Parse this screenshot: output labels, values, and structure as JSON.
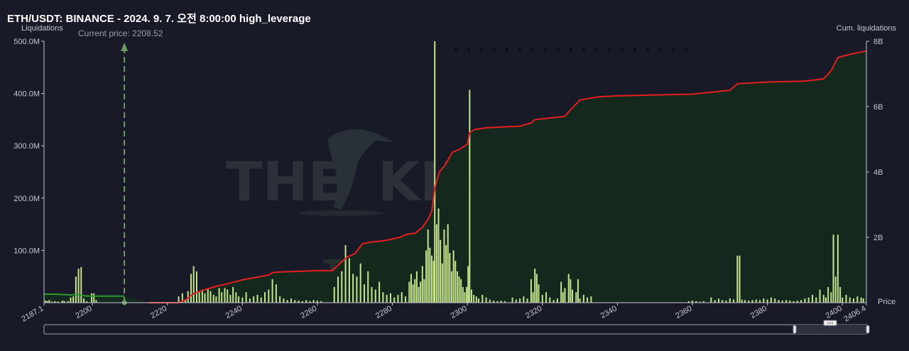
{
  "chart_data": {
    "type": "bar",
    "title": "ETH/USDT: BINANCE - 2024. 9. 7. 오전 8:00:00 high_leverage",
    "y_left_label": "Liquidations",
    "y_right_label": "Cum. liquidations",
    "x_label": "Price",
    "x_range": [
      2187.1,
      2406.4
    ],
    "x_ticks": [
      "2187.1",
      "2200",
      "2220",
      "2240",
      "2260",
      "2280",
      "2300",
      "2320",
      "2340",
      "2360",
      "2380",
      "2400",
      "2406.4"
    ],
    "y_left_range": [
      0,
      500
    ],
    "y_left_ticks": [
      "100.0M",
      "200.0M",
      "300.0M",
      "400.0M",
      "500.0M"
    ],
    "y_right_range": [
      0,
      8
    ],
    "y_right_ticks": [
      "2B",
      "4B",
      "6B",
      "8B"
    ],
    "current_price_label": "Current price: 2208.52",
    "current_price": 2208.52,
    "grid": false,
    "watermark": "THE KINGFISHER.io",
    "colors": {
      "background": "#181a28",
      "bars": "#c6e58e",
      "cumulative_line": "#e61e1e",
      "below_price_line": "#2e9a2e",
      "area_fill": "#15291c",
      "current_price_marker": "#6b9a5f"
    },
    "series": [
      {
        "name": "Liquidations",
        "unit": "M",
        "bars": [
          [
            2187.5,
            4
          ],
          [
            2188.0,
            3
          ],
          [
            2188.5,
            5
          ],
          [
            2189.2,
            2
          ],
          [
            2190.0,
            3
          ],
          [
            2190.8,
            2
          ],
          [
            2192.0,
            4
          ],
          [
            2192.5,
            3
          ],
          [
            2193.5,
            3
          ],
          [
            2194.2,
            10
          ],
          [
            2194.9,
            12
          ],
          [
            2195.6,
            50
          ],
          [
            2196.3,
            65
          ],
          [
            2197.0,
            68
          ],
          [
            2197.7,
            8
          ],
          [
            2198.5,
            3
          ],
          [
            2199.8,
            18
          ],
          [
            2200.4,
            18
          ],
          [
            2201.0,
            5
          ],
          [
            2223.0,
            12
          ],
          [
            2224.0,
            18
          ],
          [
            2224.8,
            5
          ],
          [
            2225.5,
            22
          ],
          [
            2226.3,
            55
          ],
          [
            2227.0,
            70
          ],
          [
            2227.8,
            60
          ],
          [
            2228.5,
            20
          ],
          [
            2229.3,
            25
          ],
          [
            2230.0,
            18
          ],
          [
            2230.8,
            28
          ],
          [
            2231.5,
            22
          ],
          [
            2232.3,
            15
          ],
          [
            2233.0,
            12
          ],
          [
            2233.8,
            28
          ],
          [
            2234.5,
            20
          ],
          [
            2235.3,
            28
          ],
          [
            2236.0,
            25
          ],
          [
            2236.8,
            15
          ],
          [
            2237.5,
            30
          ],
          [
            2238.3,
            20
          ],
          [
            2239.0,
            12
          ],
          [
            2240.0,
            10
          ],
          [
            2241.0,
            20
          ],
          [
            2242.0,
            8
          ],
          [
            2243.0,
            12
          ],
          [
            2244.0,
            15
          ],
          [
            2245.0,
            10
          ],
          [
            2246.0,
            20
          ],
          [
            2247.0,
            25
          ],
          [
            2248.0,
            45
          ],
          [
            2249.0,
            35
          ],
          [
            2250.0,
            12
          ],
          [
            2251.0,
            8
          ],
          [
            2252.0,
            5
          ],
          [
            2253.0,
            8
          ],
          [
            2254.0,
            5
          ],
          [
            2255.0,
            4
          ],
          [
            2256.0,
            3
          ],
          [
            2257.0,
            5
          ],
          [
            2258.0,
            3
          ],
          [
            2259.0,
            5
          ],
          [
            2260.0,
            4
          ],
          [
            2261.0,
            3
          ],
          [
            2264.5,
            30
          ],
          [
            2265.5,
            50
          ],
          [
            2266.5,
            60
          ],
          [
            2267.5,
            110
          ],
          [
            2268.5,
            85
          ],
          [
            2269.5,
            55
          ],
          [
            2270.5,
            50
          ],
          [
            2271.5,
            75
          ],
          [
            2272.5,
            35
          ],
          [
            2273.5,
            60
          ],
          [
            2274.5,
            30
          ],
          [
            2275.5,
            25
          ],
          [
            2276.5,
            40
          ],
          [
            2277.5,
            20
          ],
          [
            2278.5,
            15
          ],
          [
            2279.5,
            18
          ],
          [
            2280.5,
            10
          ],
          [
            2281.5,
            15
          ],
          [
            2282.5,
            20
          ],
          [
            2283.5,
            12
          ],
          [
            2284.5,
            40
          ],
          [
            2285.0,
            55
          ],
          [
            2285.5,
            35
          ],
          [
            2286.0,
            45
          ],
          [
            2286.5,
            60
          ],
          [
            2287.0,
            30
          ],
          [
            2287.5,
            40
          ],
          [
            2288.0,
            70
          ],
          [
            2288.5,
            45
          ],
          [
            2289.0,
            100
          ],
          [
            2289.5,
            140
          ],
          [
            2290.0,
            105
          ],
          [
            2290.5,
            90
          ],
          [
            2291.0,
            80
          ],
          [
            2291.3,
            500
          ],
          [
            2291.8,
            150
          ],
          [
            2292.3,
            180
          ],
          [
            2292.8,
            120
          ],
          [
            2293.3,
            75
          ],
          [
            2293.8,
            140
          ],
          [
            2294.3,
            110
          ],
          [
            2294.8,
            150
          ],
          [
            2295.3,
            95
          ],
          [
            2295.8,
            60
          ],
          [
            2296.3,
            100
          ],
          [
            2296.8,
            80
          ],
          [
            2297.3,
            60
          ],
          [
            2297.8,
            50
          ],
          [
            2298.3,
            45
          ],
          [
            2298.8,
            30
          ],
          [
            2299.3,
            20
          ],
          [
            2299.8,
            30
          ],
          [
            2300.2,
            70
          ],
          [
            2300.6,
            407
          ],
          [
            2301.1,
            25
          ],
          [
            2301.7,
            15
          ],
          [
            2302.4,
            12
          ],
          [
            2303.0,
            8
          ],
          [
            2304.0,
            15
          ],
          [
            2305.0,
            10
          ],
          [
            2306.0,
            6
          ],
          [
            2307.0,
            4
          ],
          [
            2308.0,
            3
          ],
          [
            2309.0,
            4
          ],
          [
            2310.0,
            3
          ],
          [
            2312.0,
            10
          ],
          [
            2313.0,
            6
          ],
          [
            2314.0,
            8
          ],
          [
            2315.0,
            12
          ],
          [
            2316.0,
            8
          ],
          [
            2317.0,
            45
          ],
          [
            2317.5,
            20
          ],
          [
            2318.0,
            65
          ],
          [
            2318.5,
            55
          ],
          [
            2319.0,
            35
          ],
          [
            2320.0,
            15
          ],
          [
            2321.0,
            20
          ],
          [
            2322.0,
            10
          ],
          [
            2323.0,
            5
          ],
          [
            2324.0,
            8
          ],
          [
            2325.0,
            40
          ],
          [
            2325.5,
            20
          ],
          [
            2326.0,
            28
          ],
          [
            2327.0,
            55
          ],
          [
            2327.5,
            45
          ],
          [
            2328.0,
            25
          ],
          [
            2329.0,
            20
          ],
          [
            2329.5,
            45
          ],
          [
            2330.0,
            8
          ],
          [
            2331.0,
            15
          ],
          [
            2332.0,
            10
          ],
          [
            2333.0,
            12
          ],
          [
            2359.0,
            3
          ],
          [
            2360.0,
            4
          ],
          [
            2361.0,
            3
          ],
          [
            2362.0,
            2
          ],
          [
            2363.0,
            3
          ],
          [
            2365.0,
            10
          ],
          [
            2366.0,
            5
          ],
          [
            2367.0,
            8
          ],
          [
            2368.0,
            5
          ],
          [
            2369.0,
            4
          ],
          [
            2370.0,
            8
          ],
          [
            2371.0,
            6
          ],
          [
            2372.0,
            90
          ],
          [
            2372.6,
            90
          ],
          [
            2373.2,
            6
          ],
          [
            2374.0,
            5
          ],
          [
            2375.0,
            4
          ],
          [
            2376.0,
            5
          ],
          [
            2377.0,
            6
          ],
          [
            2378.0,
            5
          ],
          [
            2379.0,
            8
          ],
          [
            2380.0,
            6
          ],
          [
            2381.0,
            10
          ],
          [
            2382.0,
            8
          ],
          [
            2383.0,
            5
          ],
          [
            2384.0,
            4
          ],
          [
            2385.0,
            5
          ],
          [
            2386.0,
            4
          ],
          [
            2387.0,
            3
          ],
          [
            2388.0,
            4
          ],
          [
            2389.0,
            5
          ],
          [
            2390.0,
            8
          ],
          [
            2391.0,
            10
          ],
          [
            2392.0,
            15
          ],
          [
            2393.0,
            10
          ],
          [
            2394.0,
            25
          ],
          [
            2395.0,
            15
          ],
          [
            2395.6,
            10
          ],
          [
            2396.2,
            30
          ],
          [
            2397.0,
            20
          ],
          [
            2397.6,
            130
          ],
          [
            2398.2,
            50
          ],
          [
            2398.8,
            130
          ],
          [
            2399.4,
            30
          ],
          [
            2400.0,
            10
          ],
          [
            2401.0,
            15
          ],
          [
            2402.0,
            10
          ],
          [
            2403.0,
            8
          ],
          [
            2404.0,
            12
          ],
          [
            2405.0,
            10
          ],
          [
            2405.6,
            8
          ]
        ]
      },
      {
        "name": "Cum. liquidations",
        "unit": "B",
        "points": [
          [
            2187.1,
            0.26
          ],
          [
            2190,
            0.26
          ],
          [
            2194,
            0.24
          ],
          [
            2196,
            0.25
          ],
          [
            2198,
            0.21
          ],
          [
            2200,
            0.2
          ],
          [
            2205,
            0.2
          ],
          [
            2208.5,
            0.2
          ],
          [
            2215,
            0.0
          ],
          [
            2223,
            0.0
          ],
          [
            2225,
            0.1
          ],
          [
            2227,
            0.28
          ],
          [
            2230,
            0.4
          ],
          [
            2233,
            0.5
          ],
          [
            2236,
            0.58
          ],
          [
            2240,
            0.7
          ],
          [
            2244,
            0.78
          ],
          [
            2247,
            0.85
          ],
          [
            2248,
            0.92
          ],
          [
            2250,
            0.94
          ],
          [
            2255,
            0.96
          ],
          [
            2260,
            0.98
          ],
          [
            2264,
            0.98
          ],
          [
            2266,
            1.2
          ],
          [
            2268,
            1.4
          ],
          [
            2270,
            1.5
          ],
          [
            2272,
            1.8
          ],
          [
            2274,
            1.85
          ],
          [
            2278,
            1.9
          ],
          [
            2282,
            2.0
          ],
          [
            2284,
            2.1
          ],
          [
            2286,
            2.12
          ],
          [
            2288,
            2.3
          ],
          [
            2289.5,
            2.55
          ],
          [
            2290.5,
            2.8
          ],
          [
            2291.3,
            3.5
          ],
          [
            2292.5,
            4.0
          ],
          [
            2294,
            4.2
          ],
          [
            2296,
            4.6
          ],
          [
            2298,
            4.7
          ],
          [
            2300,
            4.85
          ],
          [
            2300.6,
            5.2
          ],
          [
            2302,
            5.3
          ],
          [
            2305,
            5.35
          ],
          [
            2310,
            5.38
          ],
          [
            2314,
            5.4
          ],
          [
            2317,
            5.5
          ],
          [
            2318,
            5.6
          ],
          [
            2322,
            5.65
          ],
          [
            2326,
            5.7
          ],
          [
            2327.5,
            5.9
          ],
          [
            2330,
            6.2
          ],
          [
            2335,
            6.3
          ],
          [
            2340,
            6.33
          ],
          [
            2360,
            6.38
          ],
          [
            2370,
            6.5
          ],
          [
            2372,
            6.7
          ],
          [
            2380,
            6.75
          ],
          [
            2390,
            6.78
          ],
          [
            2395,
            6.85
          ],
          [
            2397,
            7.1
          ],
          [
            2398.8,
            7.5
          ],
          [
            2402,
            7.6
          ],
          [
            2406.4,
            7.7
          ]
        ]
      }
    ]
  }
}
